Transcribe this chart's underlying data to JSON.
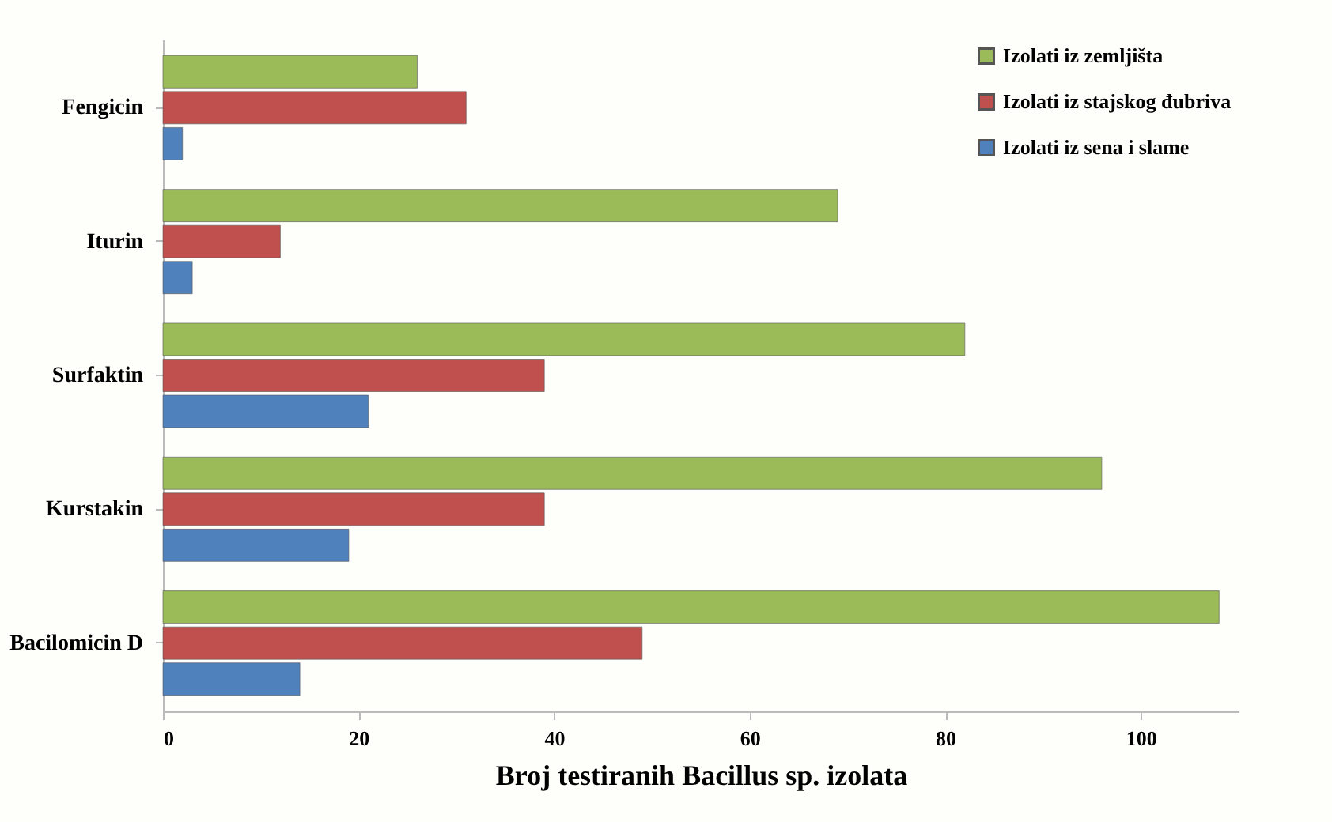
{
  "chart_data": {
    "type": "bar",
    "orientation": "horizontal",
    "xlabel": "Broj testiranih Bacillus sp. izolata",
    "categories": [
      "Fengicin",
      "Iturin",
      "Surfaktin",
      "Kurstakin",
      "Bacilomicin D"
    ],
    "series": [
      {
        "name": "Izolati iz zemljišta",
        "color": "#9bbb59",
        "values": [
          26,
          69,
          82,
          96,
          108
        ]
      },
      {
        "name": "Izolati iz stajskog đubriva",
        "color": "#c0504d",
        "values": [
          31,
          12,
          39,
          39,
          49
        ]
      },
      {
        "name": "Izolati iz sena i slame",
        "color": "#4f81bd",
        "values": [
          2,
          3,
          21,
          19,
          14
        ]
      }
    ],
    "xlim": [
      0,
      110
    ],
    "xticks": [
      0,
      20,
      40,
      60,
      80,
      100
    ],
    "grid": false,
    "legend": "top right"
  }
}
